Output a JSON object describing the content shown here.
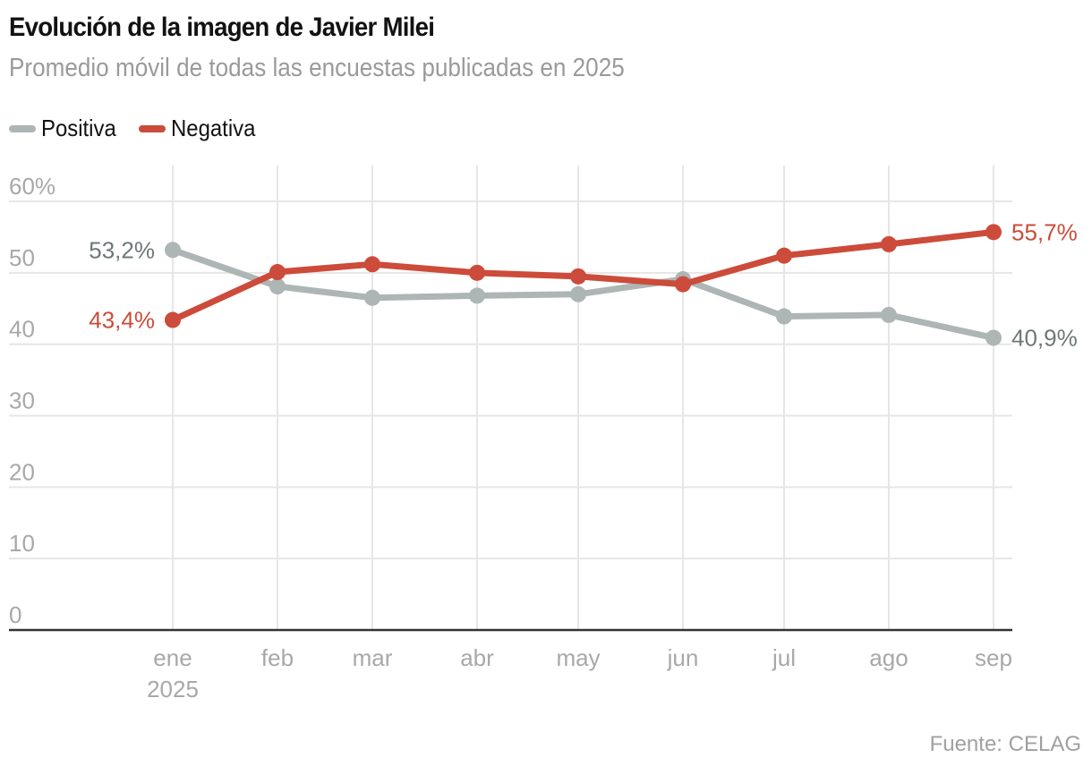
{
  "header": {
    "title": "Evolución de la imagen de Javier Milei",
    "subtitle": "Promedio móvil de todas las encuestas publicadas en 2025"
  },
  "legend": [
    {
      "label": "Positiva",
      "color": "#adb5b5"
    },
    {
      "label": "Negativa",
      "color": "#cc4b3a"
    }
  ],
  "source": "Fuente: CELAG",
  "chart_data": {
    "type": "line",
    "title": "Evolución de la imagen de Javier Milei",
    "subtitle": "Promedio móvil de todas las encuestas publicadas en 2025",
    "categories": [
      "ene",
      "feb",
      "mar",
      "abr",
      "may",
      "jun",
      "jul",
      "ago",
      "sep"
    ],
    "category_sublabels": {
      "0": "2025"
    },
    "xlabel": "",
    "ylabel": "",
    "ylim": [
      0,
      60
    ],
    "yticks": [
      0,
      10,
      20,
      30,
      40,
      50,
      60
    ],
    "ytick_labels": [
      "0",
      "10",
      "20",
      "30",
      "40",
      "50",
      "60%"
    ],
    "grid": true,
    "legend_position": "top-left",
    "series": [
      {
        "name": "Positiva",
        "color": "#adb5b5",
        "label_color": "#6e7777",
        "values": [
          53.2,
          48.1,
          46.5,
          46.8,
          47.0,
          49.1,
          43.9,
          44.1,
          40.9
        ],
        "start_label": "53,2%",
        "end_label": "40,9%"
      },
      {
        "name": "Negativa",
        "color": "#cc4b3a",
        "label_color": "#cc4b3a",
        "values": [
          43.4,
          50.1,
          51.2,
          50.0,
          49.5,
          48.4,
          52.4,
          54.0,
          55.7
        ],
        "start_label": "43,4%",
        "end_label": "55,7%"
      }
    ]
  }
}
